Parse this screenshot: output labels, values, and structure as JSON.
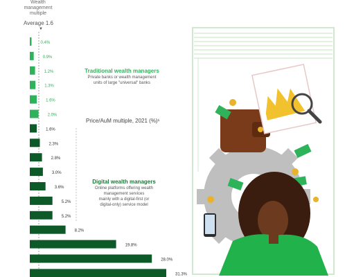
{
  "header": {
    "line1": "Wealth",
    "line2": "management",
    "line3": "multiple"
  },
  "average_label": "Average 1.6",
  "axis_title": "Price/AuM multiple, 2021 (%)¹",
  "traditional": {
    "title": "Traditional wealth managers",
    "desc1": "Private banks or wealth management",
    "desc2": "units of large \"universal\" banks"
  },
  "digital": {
    "title": "Digital wealth managers",
    "desc1": "Online platforms offering wealth",
    "desc2": "management services",
    "desc3": "mainly with a digital-first (or",
    "desc4": "digital-only) service model"
  },
  "colors": {
    "traditional": "#2fb35a",
    "digital": "#0d5a28",
    "label_light": "#2fb35a",
    "label_dark": "#333333"
  },
  "chart_data": {
    "type": "bar",
    "orientation": "horizontal",
    "average": 1.6,
    "values": [
      0.4,
      0.9,
      1.2,
      1.3,
      1.6,
      2.0,
      1.6,
      2.3,
      2.8,
      3.0,
      3.6,
      5.2,
      5.2,
      8.2,
      19.8,
      28.0,
      31.3
    ],
    "labels": [
      "0.4%",
      "0.9%",
      "1.2%",
      "1.3%",
      "1.6%",
      "2.0%",
      "1.6%",
      "2.3%",
      "2.8%",
      "3.0%",
      "3.6%",
      "5.2%",
      "5.2%",
      "8.2%",
      "19.8%",
      "28.0%",
      "31.3%"
    ],
    "groups": [
      "traditional",
      "traditional",
      "traditional",
      "traditional",
      "traditional",
      "traditional",
      "digital",
      "digital",
      "digital",
      "digital",
      "digital",
      "digital",
      "digital",
      "digital",
      "digital",
      "digital",
      "digital"
    ]
  }
}
